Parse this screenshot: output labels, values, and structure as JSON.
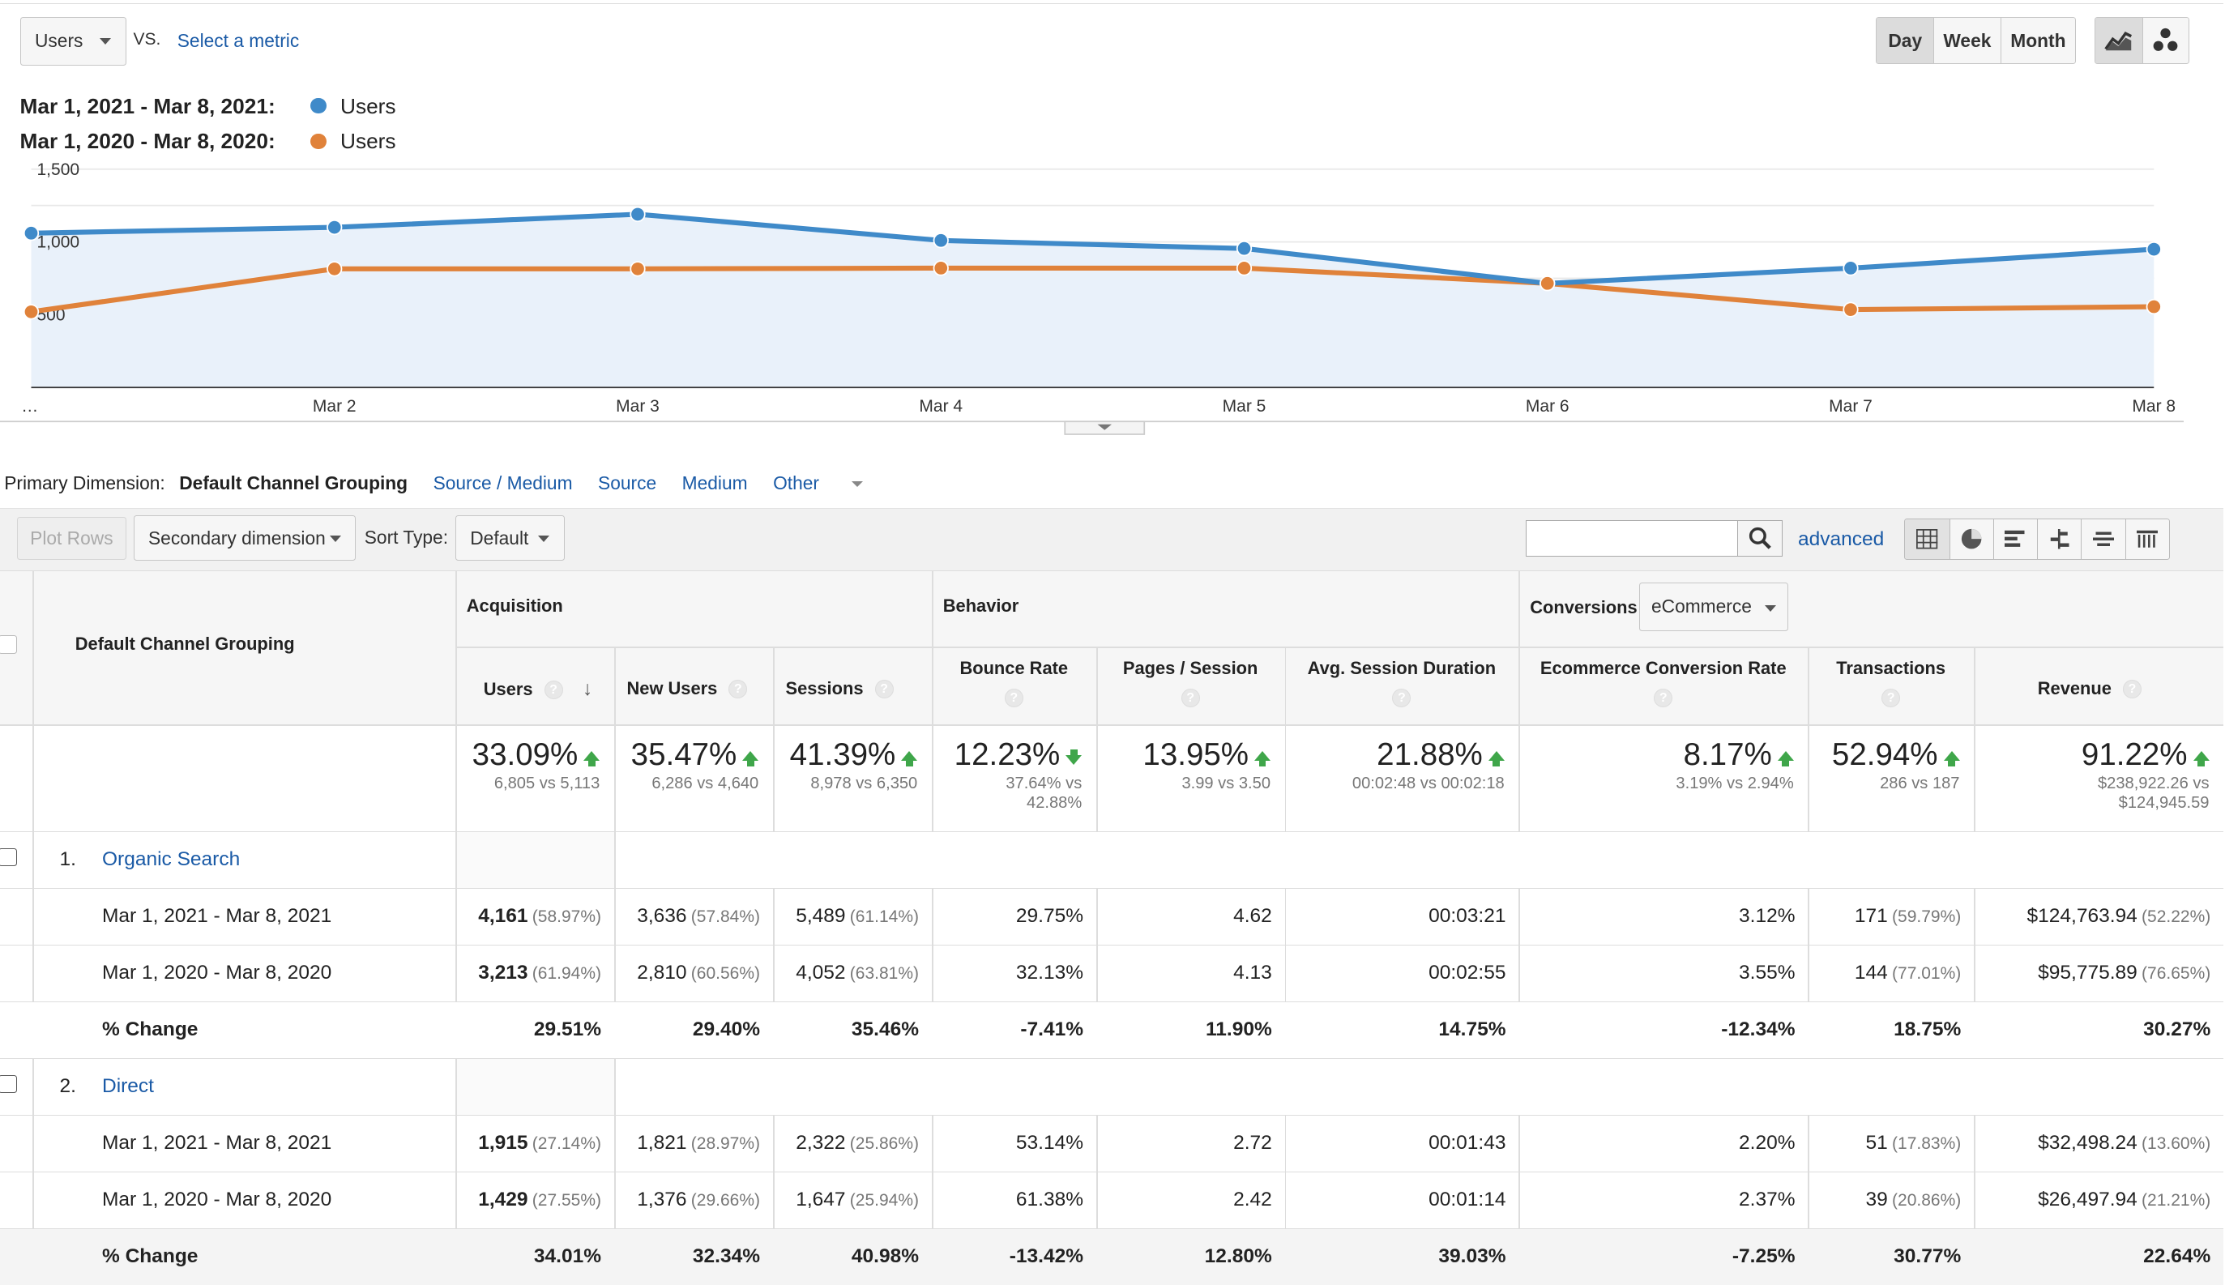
{
  "controls": {
    "metric_select": "Users",
    "vs_label": "VS.",
    "select_metric_link": "Select a metric",
    "period_buttons": [
      "Day",
      "Week",
      "Month"
    ],
    "active_period": "Day",
    "view_buttons": [
      {
        "icon": "line-chart-icon"
      },
      {
        "icon": "motion-chart-icon"
      }
    ]
  },
  "legend": [
    {
      "range": "Mar 1, 2021 - Mar 8, 2021:",
      "metric": "Users",
      "color": "#3f8ac9"
    },
    {
      "range": "Mar 1, 2020 - Mar 8, 2020:",
      "metric": "Users",
      "color": "#e0823a"
    }
  ],
  "chart_data": {
    "type": "line",
    "categories": [
      "…",
      "Mar 2",
      "Mar 3",
      "Mar 4",
      "Mar 5",
      "Mar 6",
      "Mar 7",
      "Mar 8"
    ],
    "y_ticks": [
      "1,500",
      "1,000",
      "500"
    ],
    "ylim": [
      0,
      1500
    ],
    "grid": true,
    "series": [
      {
        "name": "Mar 1, 2021 - Mar 8, 2021",
        "color": "#3f8ac9",
        "values": [
          1060,
          1100,
          1190,
          1010,
          955,
          715,
          820,
          950
        ],
        "filled": true
      },
      {
        "name": "Mar 1, 2020 - Mar 8, 2020",
        "color": "#e0823a",
        "values": [
          520,
          815,
          815,
          820,
          820,
          715,
          535,
          555
        ],
        "filled": false
      }
    ]
  },
  "dimension": {
    "label": "Primary Dimension:",
    "current": "Default Channel Grouping",
    "options": [
      "Source / Medium",
      "Source",
      "Medium",
      "Other"
    ]
  },
  "toolbar": {
    "plot_rows": "Plot Rows",
    "secondary_dimension": "Secondary dimension",
    "sort_type_label": "Sort Type:",
    "sort_type_value": "Default",
    "search_value": "",
    "advanced_link": "advanced"
  },
  "table": {
    "first_col_header": "Default Channel Grouping",
    "groups": {
      "acquisition": "Acquisition",
      "behavior": "Behavior",
      "conversions": "Conversions",
      "conversions_select": "eCommerce"
    },
    "columns": [
      "Users",
      "New Users",
      "Sessions",
      "Bounce Rate",
      "Pages / Session",
      "Avg. Session Duration",
      "Ecommerce Conversion Rate",
      "Transactions",
      "Revenue"
    ],
    "summary": [
      {
        "value": "33.09%",
        "sub1": "6,805 vs 5,113",
        "sub2": "",
        "dir": "up"
      },
      {
        "value": "35.47%",
        "sub1": "6,286 vs 4,640",
        "sub2": "",
        "dir": "up"
      },
      {
        "value": "41.39%",
        "sub1": "8,978 vs 6,350",
        "sub2": "",
        "dir": "up"
      },
      {
        "value": "12.23%",
        "sub1": "37.64% vs",
        "sub2": "42.88%",
        "dir": "down"
      },
      {
        "value": "13.95%",
        "sub1": "3.99 vs 3.50",
        "sub2": "",
        "dir": "up"
      },
      {
        "value": "21.88%",
        "sub1": "00:02:48 vs 00:02:18",
        "sub2": "",
        "dir": "up"
      },
      {
        "value": "8.17%",
        "sub1": "3.19% vs 2.94%",
        "sub2": "",
        "dir": "up"
      },
      {
        "value": "52.94%",
        "sub1": "286 vs 187",
        "sub2": "",
        "dir": "up"
      },
      {
        "value": "91.22%",
        "sub1": "$238,922.26 vs",
        "sub2": "$124,945.59",
        "dir": "up"
      }
    ],
    "channels": [
      {
        "index": "1.",
        "name": "Organic Search",
        "rows": [
          {
            "label": "Mar 1, 2021 - Mar 8, 2021",
            "cells": [
              [
                "4,161",
                "(58.97%)"
              ],
              [
                "3,636",
                "(57.84%)"
              ],
              [
                "5,489",
                "(61.14%)"
              ],
              [
                "29.75%",
                ""
              ],
              [
                "4.62",
                ""
              ],
              [
                "00:03:21",
                ""
              ],
              [
                "3.12%",
                ""
              ],
              [
                "171",
                "(59.79%)"
              ],
              [
                "$124,763.94",
                "(52.22%)"
              ]
            ]
          },
          {
            "label": "Mar 1, 2020 - Mar 8, 2020",
            "cells": [
              [
                "3,213",
                "(61.94%)"
              ],
              [
                "2,810",
                "(60.56%)"
              ],
              [
                "4,052",
                "(63.81%)"
              ],
              [
                "32.13%",
                ""
              ],
              [
                "4.13",
                ""
              ],
              [
                "00:02:55",
                ""
              ],
              [
                "3.55%",
                ""
              ],
              [
                "144",
                "(77.01%)"
              ],
              [
                "$95,775.89",
                "(76.65%)"
              ]
            ]
          },
          {
            "label": "% Change",
            "cells": [
              [
                "29.51%",
                ""
              ],
              [
                "29.40%",
                ""
              ],
              [
                "35.46%",
                ""
              ],
              [
                "-7.41%",
                ""
              ],
              [
                "11.90%",
                ""
              ],
              [
                "14.75%",
                ""
              ],
              [
                "-12.34%",
                ""
              ],
              [
                "18.75%",
                ""
              ],
              [
                "30.27%",
                ""
              ]
            ]
          }
        ]
      },
      {
        "index": "2.",
        "name": "Direct",
        "rows": [
          {
            "label": "Mar 1, 2021 - Mar 8, 2021",
            "cells": [
              [
                "1,915",
                "(27.14%)"
              ],
              [
                "1,821",
                "(28.97%)"
              ],
              [
                "2,322",
                "(25.86%)"
              ],
              [
                "53.14%",
                ""
              ],
              [
                "2.72",
                ""
              ],
              [
                "00:01:43",
                ""
              ],
              [
                "2.20%",
                ""
              ],
              [
                "51",
                "(17.83%)"
              ],
              [
                "$32,498.24",
                "(13.60%)"
              ]
            ]
          },
          {
            "label": "Mar 1, 2020 - Mar 8, 2020",
            "cells": [
              [
                "1,429",
                "(27.55%)"
              ],
              [
                "1,376",
                "(29.66%)"
              ],
              [
                "1,647",
                "(25.94%)"
              ],
              [
                "61.38%",
                ""
              ],
              [
                "2.42",
                ""
              ],
              [
                "00:01:14",
                ""
              ],
              [
                "2.37%",
                ""
              ],
              [
                "39",
                "(20.86%)"
              ],
              [
                "$26,497.94",
                "(21.21%)"
              ]
            ]
          },
          {
            "label": "% Change",
            "cells": [
              [
                "34.01%",
                ""
              ],
              [
                "32.34%",
                ""
              ],
              [
                "40.98%",
                ""
              ],
              [
                "-13.42%",
                ""
              ],
              [
                "12.80%",
                ""
              ],
              [
                "39.03%",
                ""
              ],
              [
                "-7.25%",
                ""
              ],
              [
                "30.77%",
                ""
              ],
              [
                "22.64%",
                ""
              ]
            ]
          }
        ]
      }
    ]
  }
}
